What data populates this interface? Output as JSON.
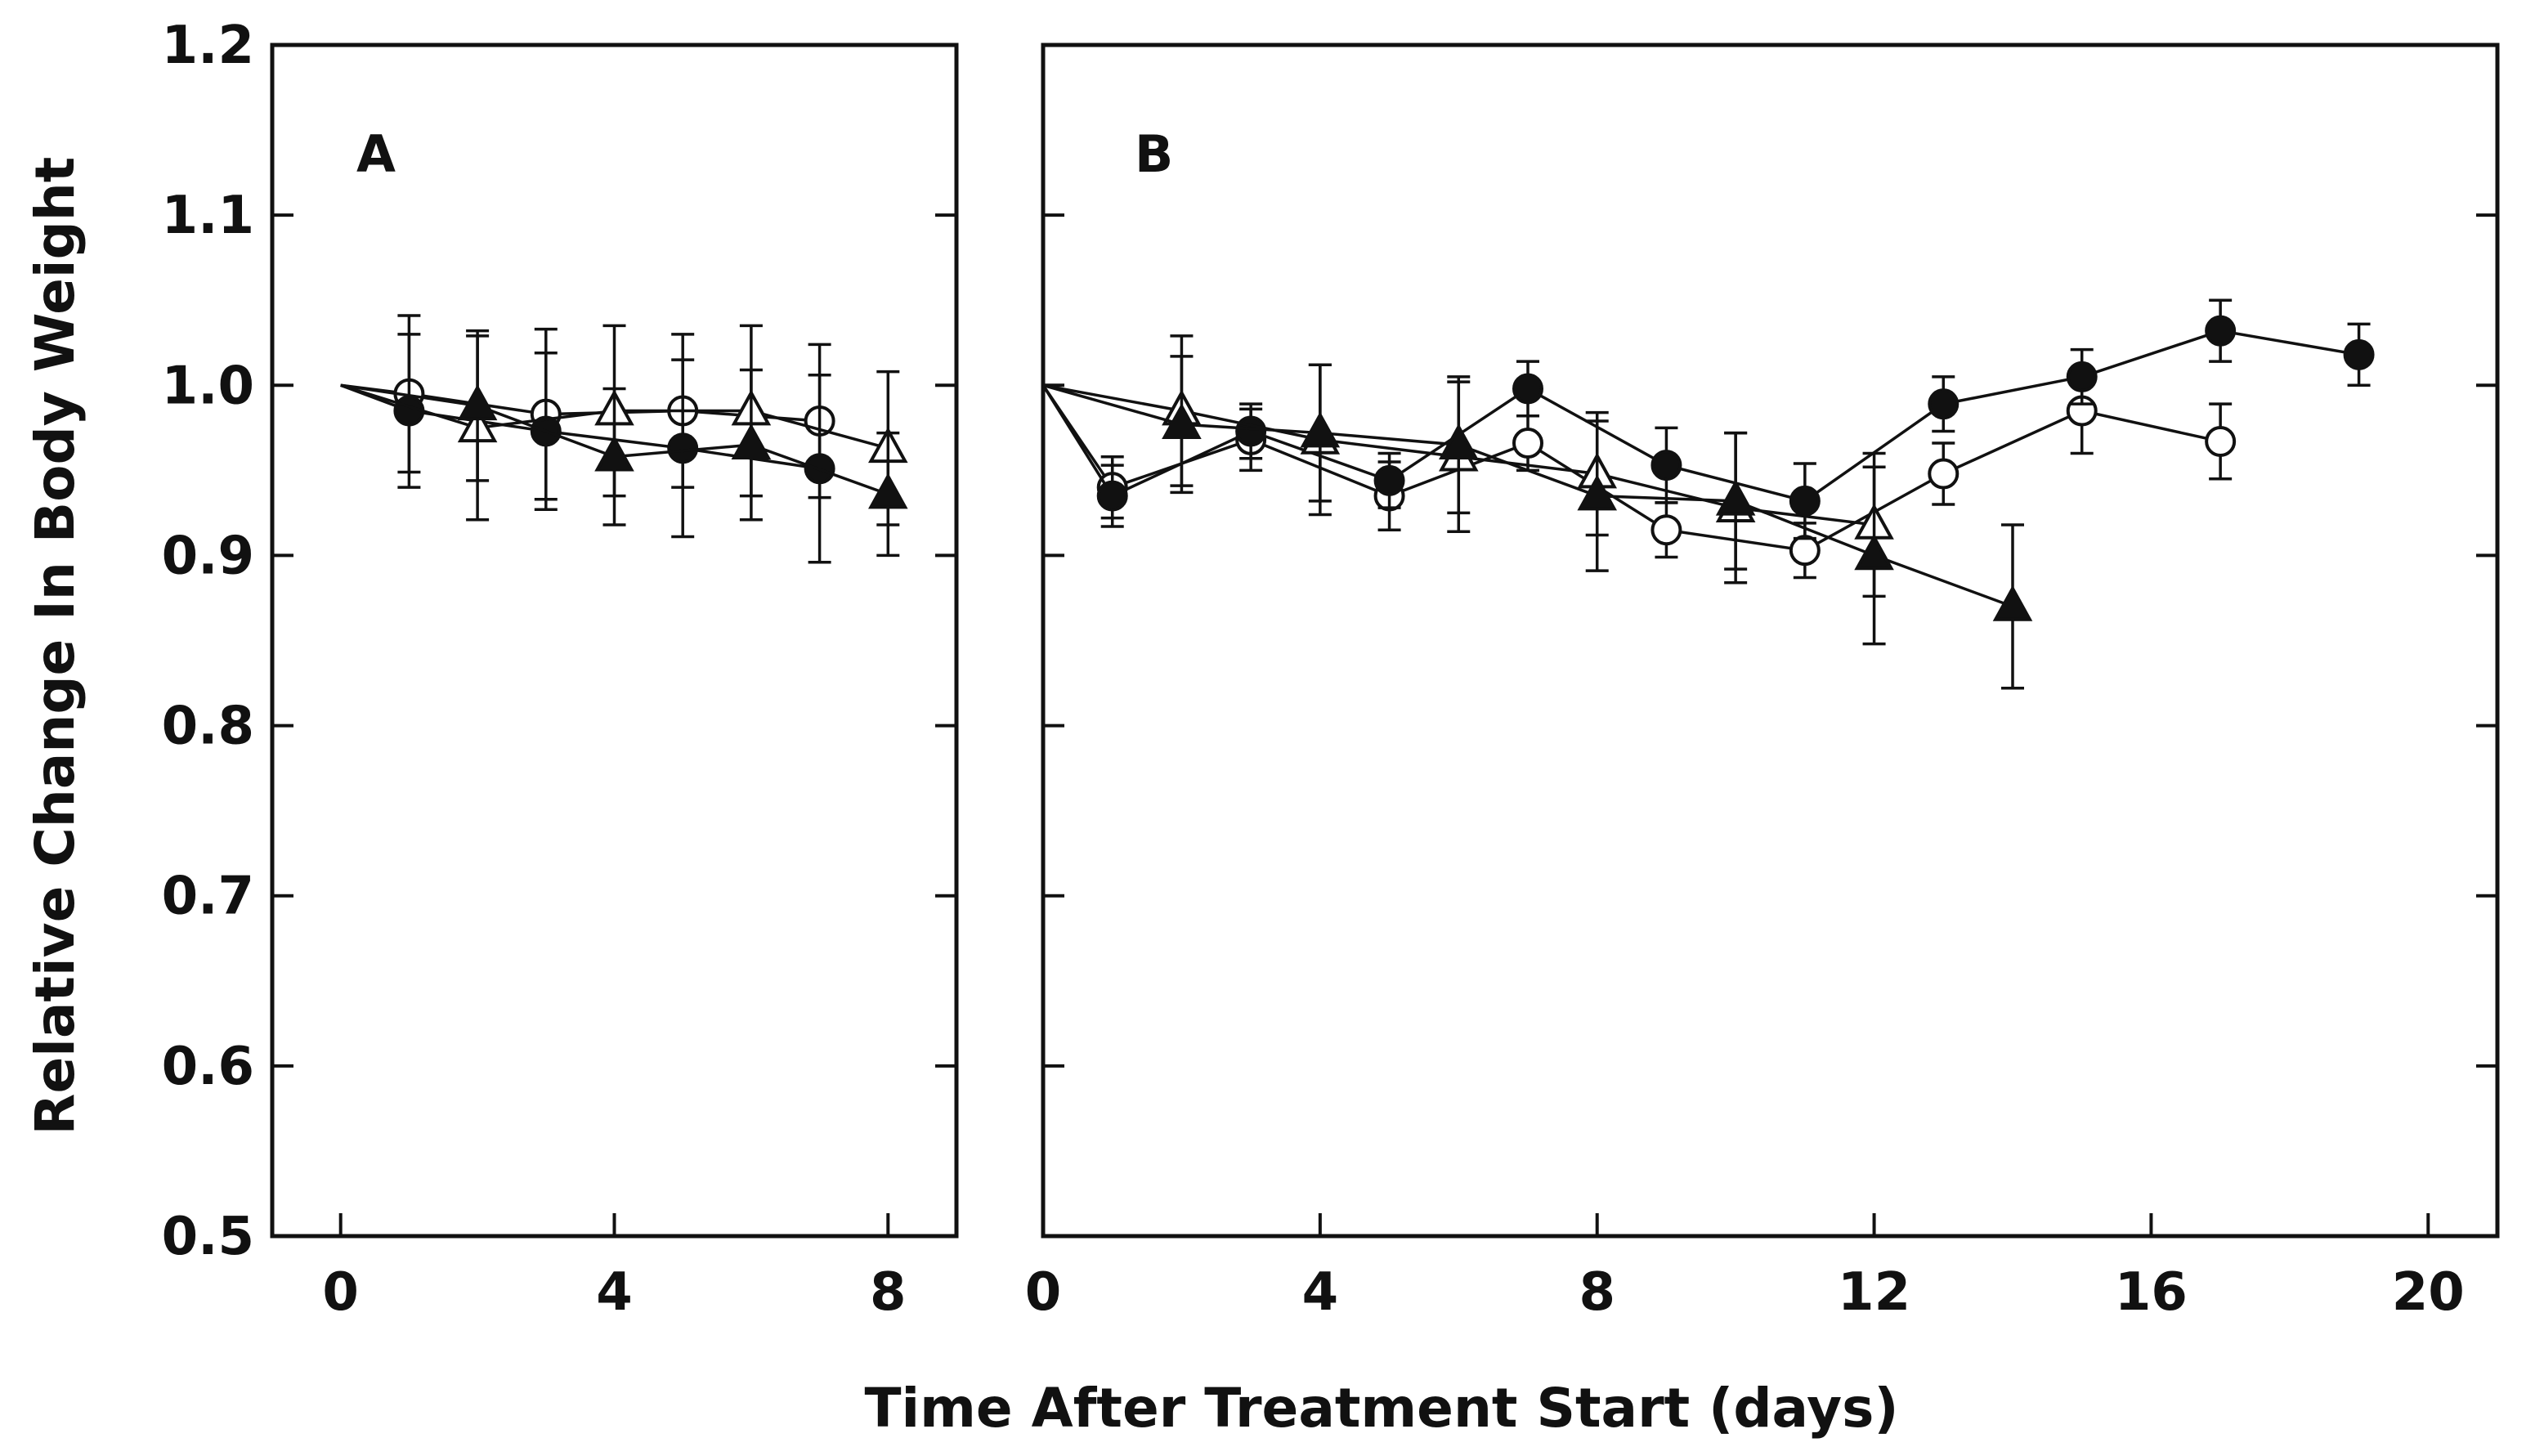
{
  "figure": {
    "ylabel": "Relative Change In Body Weight",
    "xlabel": "Time After Treatment Start (days)"
  },
  "chart_data": [
    {
      "type": "line",
      "panel": "A",
      "xlim": [
        -1,
        9
      ],
      "ylim": [
        0.5,
        1.2
      ],
      "xticks": [
        0,
        4,
        8
      ],
      "yticks": [
        0.5,
        0.6,
        0.7,
        0.8,
        0.9,
        1.0,
        1.1,
        1.2
      ],
      "ytick_labels": [
        "0.5",
        "0.6",
        "0.7",
        "0.8",
        "0.9",
        "1.0",
        "1.1",
        "1.2"
      ],
      "series": [
        {
          "name": "open circle",
          "marker": "circle",
          "filled": false,
          "x": [
            0,
            1,
            3,
            5,
            7
          ],
          "y": [
            1.0,
            0.995,
            0.983,
            0.985,
            0.979
          ],
          "err": [
            0,
            0.046,
            0.05,
            0.045,
            0.045
          ]
        },
        {
          "name": "filled circle",
          "marker": "circle",
          "filled": true,
          "x": [
            0,
            1,
            3,
            5,
            7
          ],
          "y": [
            1.0,
            0.985,
            0.973,
            0.963,
            0.951
          ],
          "err": [
            0,
            0.045,
            0.046,
            0.052,
            0.055
          ]
        },
        {
          "name": "open triangle",
          "marker": "triangle",
          "filled": false,
          "x": [
            0,
            2,
            4,
            6,
            8
          ],
          "y": [
            1.0,
            0.975,
            0.985,
            0.985,
            0.963
          ],
          "err": [
            0,
            0.054,
            0.05,
            0.05,
            0.045
          ]
        },
        {
          "name": "filled triangle",
          "marker": "triangle",
          "filled": true,
          "x": [
            0,
            2,
            4,
            6,
            8
          ],
          "y": [
            1.0,
            0.988,
            0.958,
            0.965,
            0.936
          ],
          "err": [
            0,
            0.044,
            0.04,
            0.044,
            0.036
          ]
        }
      ]
    },
    {
      "type": "line",
      "panel": "B",
      "xlim": [
        0,
        21
      ],
      "ylim": [
        0.5,
        1.2
      ],
      "xticks": [
        0,
        4,
        8,
        12,
        16,
        20
      ],
      "yticks": [
        0.5,
        0.6,
        0.7,
        0.8,
        0.9,
        1.0,
        1.1,
        1.2
      ],
      "series": [
        {
          "name": "open circle",
          "marker": "circle",
          "filled": false,
          "x": [
            0,
            1,
            3,
            5,
            7,
            9,
            11,
            13,
            15,
            17
          ],
          "y": [
            1.0,
            0.94,
            0.968,
            0.935,
            0.966,
            0.915,
            0.903,
            0.948,
            0.985,
            0.967
          ],
          "err": [
            0,
            0.018,
            0.018,
            0.02,
            0.016,
            0.016,
            0.016,
            0.018,
            0.025,
            0.022
          ]
        },
        {
          "name": "filled circle",
          "marker": "circle",
          "filled": true,
          "x": [
            0,
            1,
            3,
            5,
            7,
            9,
            11,
            13,
            15,
            17,
            19
          ],
          "y": [
            1.0,
            0.935,
            0.973,
            0.944,
            0.998,
            0.953,
            0.932,
            0.989,
            1.005,
            1.032,
            1.018
          ],
          "err": [
            0,
            0.018,
            0.016,
            0.016,
            0.016,
            0.022,
            0.022,
            0.016,
            0.016,
            0.018,
            0.018
          ]
        },
        {
          "name": "open triangle",
          "marker": "triangle",
          "filled": false,
          "x": [
            0,
            2,
            4,
            6,
            8,
            10,
            12
          ],
          "y": [
            1.0,
            0.985,
            0.968,
            0.958,
            0.948,
            0.928,
            0.918
          ],
          "err": [
            0,
            0.044,
            0.044,
            0.044,
            0.036,
            0.044,
            0.042
          ]
        },
        {
          "name": "filled triangle",
          "marker": "triangle",
          "filled": true,
          "x": [
            0,
            2,
            4,
            6,
            8,
            10,
            12,
            14
          ],
          "y": [
            1.0,
            0.977,
            0.972,
            0.965,
            0.935,
            0.932,
            0.9,
            0.87
          ],
          "err": [
            0,
            0.04,
            0.04,
            0.04,
            0.044,
            0.04,
            0.052,
            0.048
          ]
        }
      ]
    }
  ]
}
